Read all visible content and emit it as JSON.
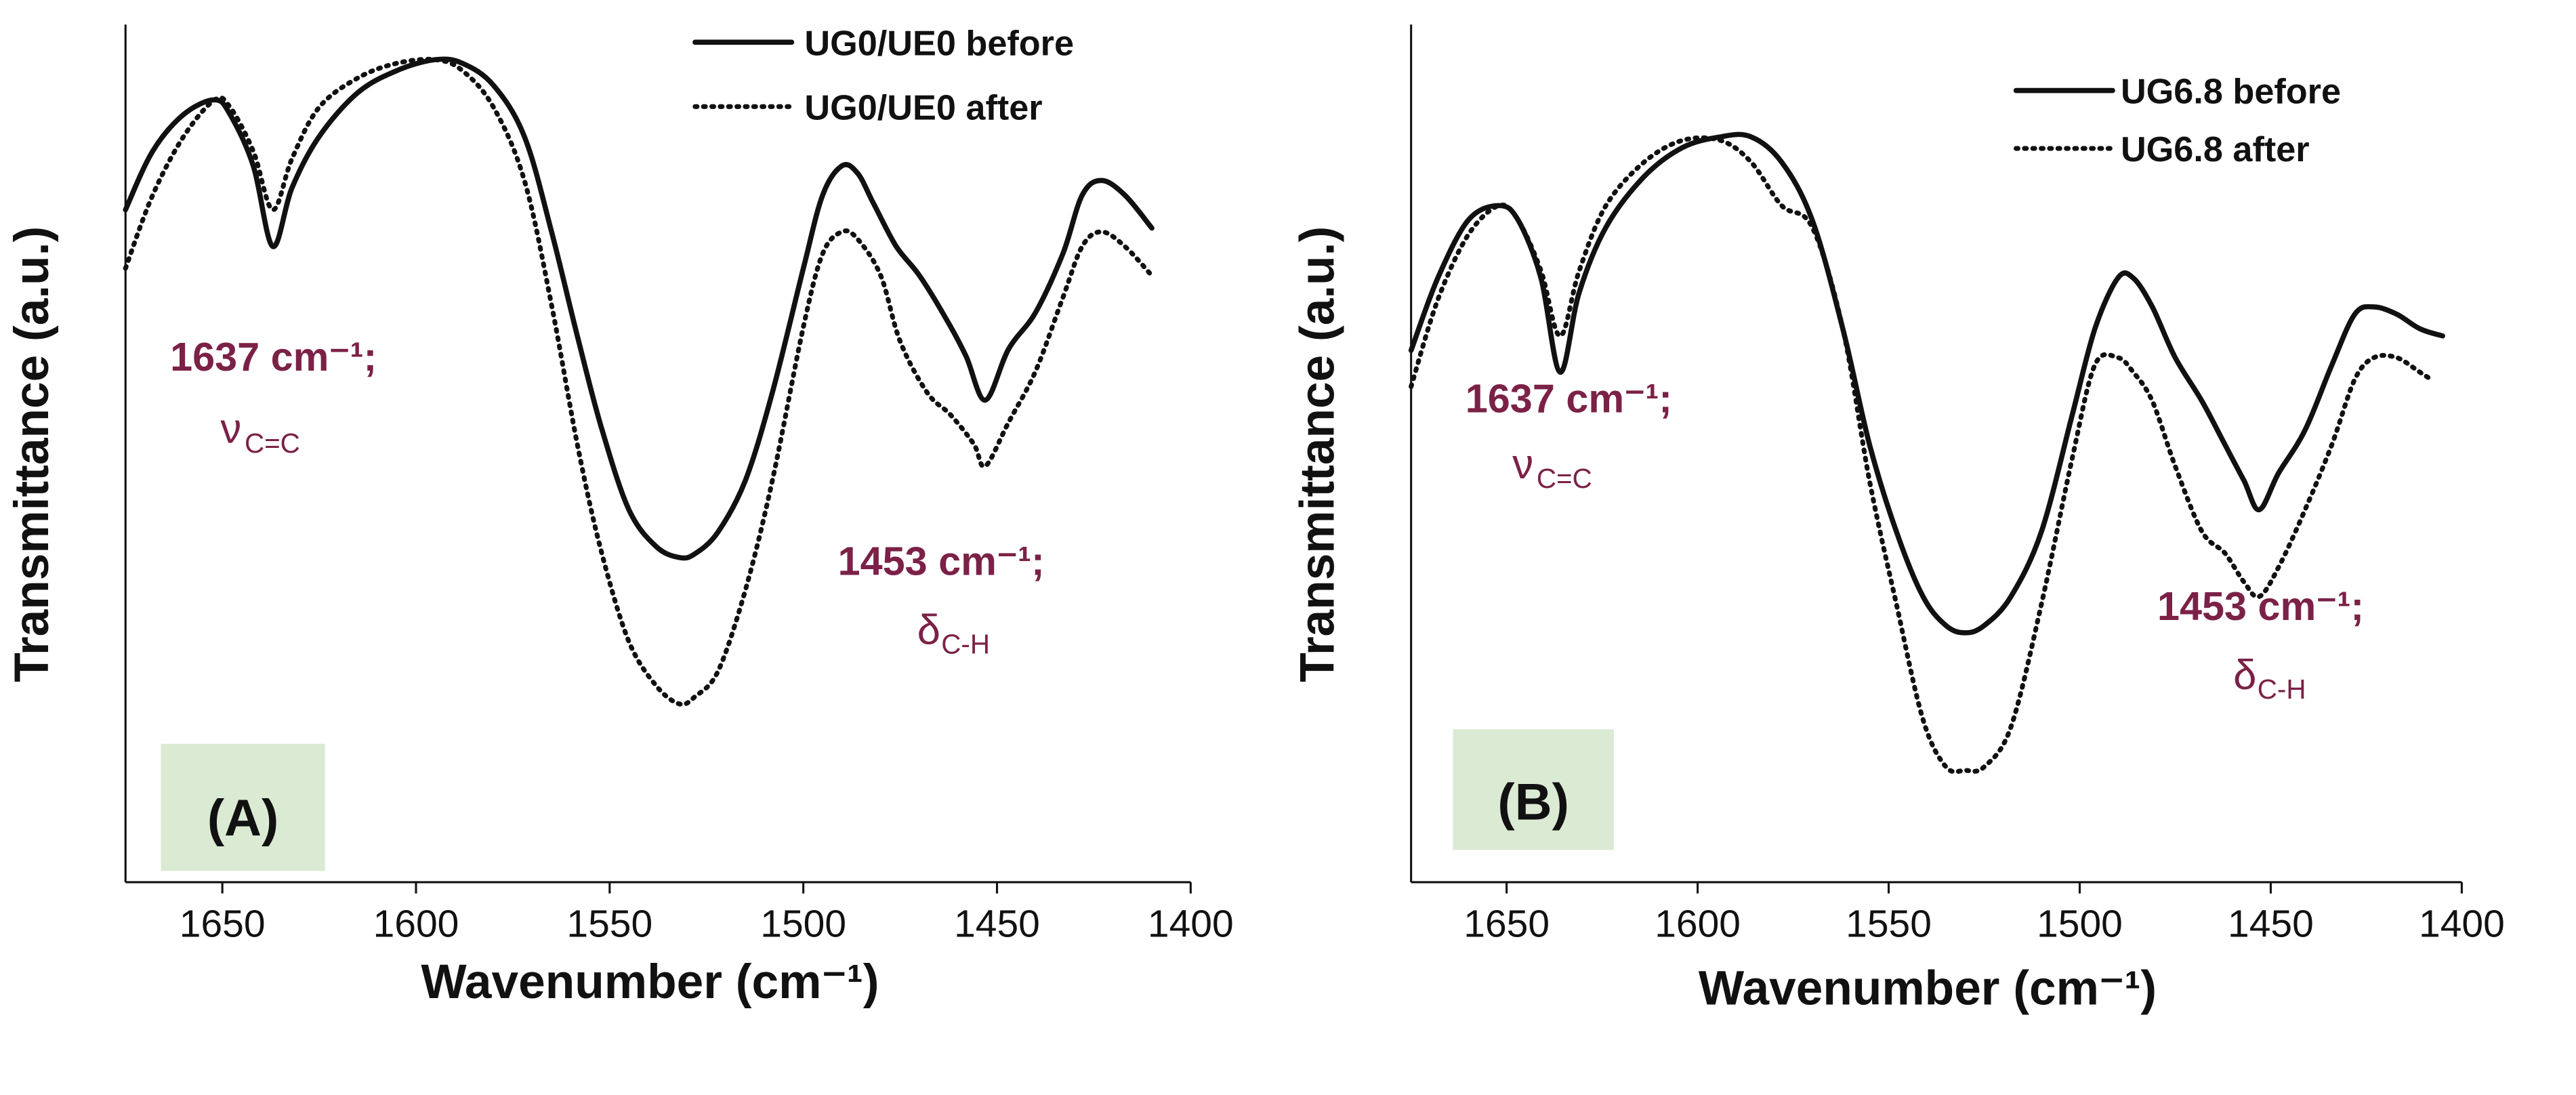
{
  "colors": {
    "line": "#111111",
    "annotation": "#7b2147",
    "tag_background": "#dbead3"
  },
  "chart_data": [
    {
      "type": "line",
      "panel_tag": "(A)",
      "xlabel": "Wavenumber (cm⁻¹)",
      "ylabel": "Transmittance (a.u.)",
      "xlim": [
        1675,
        1400
      ],
      "ylim": [
        0,
        1
      ],
      "y_ticks_shown": false,
      "x_ticks": [
        1650,
        1600,
        1550,
        1500,
        1450,
        1400
      ],
      "x_tick_labels": [
        "1650",
        "1600",
        "1550",
        "1500",
        "1450",
        "1400"
      ],
      "series": [
        {
          "name": "UG0/UE0 before",
          "style": "solid",
          "x": [
            1675,
            1668,
            1660,
            1652,
            1648,
            1642,
            1637,
            1632,
            1625,
            1615,
            1605,
            1595,
            1588,
            1580,
            1572,
            1565,
            1558,
            1552,
            1545,
            1538,
            1532,
            1528,
            1522,
            1515,
            1508,
            1500,
            1495,
            1490,
            1486,
            1482,
            1476,
            1470,
            1463,
            1458,
            1453,
            1447,
            1440,
            1433,
            1428,
            1423,
            1417,
            1410
          ],
          "y": [
            0.78,
            0.86,
            0.91,
            0.93,
            0.91,
            0.84,
            0.73,
            0.81,
            0.88,
            0.94,
            0.97,
            0.985,
            0.98,
            0.95,
            0.88,
            0.75,
            0.6,
            0.48,
            0.37,
            0.32,
            0.305,
            0.31,
            0.34,
            0.41,
            0.53,
            0.7,
            0.8,
            0.84,
            0.83,
            0.79,
            0.73,
            0.69,
            0.63,
            0.58,
            0.52,
            0.59,
            0.64,
            0.72,
            0.8,
            0.82,
            0.8,
            0.755
          ]
        },
        {
          "name": "UG0/UE0 after",
          "style": "dotted",
          "x": [
            1675,
            1668,
            1660,
            1652,
            1648,
            1642,
            1637,
            1632,
            1625,
            1615,
            1605,
            1595,
            1588,
            1580,
            1572,
            1565,
            1558,
            1552,
            1545,
            1538,
            1532,
            1528,
            1522,
            1515,
            1508,
            1500,
            1495,
            1490,
            1486,
            1480,
            1475,
            1468,
            1462,
            1456,
            1453,
            1447,
            1440,
            1433,
            1428,
            1423,
            1417,
            1410
          ],
          "y": [
            0.7,
            0.8,
            0.88,
            0.93,
            0.92,
            0.86,
            0.78,
            0.85,
            0.92,
            0.96,
            0.98,
            0.985,
            0.97,
            0.92,
            0.82,
            0.65,
            0.45,
            0.31,
            0.19,
            0.13,
            0.105,
            0.115,
            0.15,
            0.26,
            0.41,
            0.62,
            0.72,
            0.75,
            0.74,
            0.69,
            0.6,
            0.53,
            0.5,
            0.46,
            0.43,
            0.49,
            0.56,
            0.66,
            0.73,
            0.75,
            0.73,
            0.69
          ]
        }
      ],
      "legend": {
        "position": "top-right",
        "entries": [
          "UG0/UE0 before",
          "UG0/UE0 after"
        ]
      },
      "annotations": [
        {
          "text": "1637 cm⁻¹;",
          "subtext_symbol": "ν",
          "subtext_subscript": "C=C"
        },
        {
          "text": "1453 cm⁻¹;",
          "subtext_symbol": "δ",
          "subtext_subscript": "C-H"
        }
      ]
    },
    {
      "type": "line",
      "panel_tag": "(B)",
      "xlabel": "Wavenumber (cm⁻¹)",
      "ylabel": "Transmittance (a.u.)",
      "xlim": [
        1675,
        1400
      ],
      "ylim": [
        0,
        1
      ],
      "y_ticks_shown": false,
      "x_ticks": [
        1650,
        1600,
        1550,
        1500,
        1450,
        1400
      ],
      "x_tick_labels": [
        "1650",
        "1600",
        "1550",
        "1500",
        "1450",
        "1400"
      ],
      "series": [
        {
          "name": "UG6.8 before",
          "style": "solid",
          "x": [
            1675,
            1668,
            1660,
            1652,
            1647,
            1641,
            1636,
            1631,
            1624,
            1614,
            1604,
            1594,
            1586,
            1578,
            1570,
            1562,
            1555,
            1548,
            1541,
            1535,
            1530,
            1525,
            1518,
            1510,
            1502,
            1496,
            1490,
            1486,
            1481,
            1475,
            1468,
            1462,
            1457,
            1453,
            1448,
            1441,
            1434,
            1428,
            1423,
            1417,
            1411,
            1405
          ],
          "y": [
            0.65,
            0.75,
            0.83,
            0.85,
            0.83,
            0.75,
            0.62,
            0.73,
            0.82,
            0.89,
            0.93,
            0.945,
            0.945,
            0.91,
            0.83,
            0.68,
            0.52,
            0.4,
            0.31,
            0.27,
            0.26,
            0.27,
            0.31,
            0.4,
            0.56,
            0.68,
            0.75,
            0.75,
            0.71,
            0.64,
            0.58,
            0.52,
            0.47,
            0.43,
            0.48,
            0.54,
            0.63,
            0.7,
            0.71,
            0.7,
            0.68,
            0.67
          ]
        },
        {
          "name": "UG6.8 after",
          "style": "dotted",
          "x": [
            1675,
            1668,
            1660,
            1652,
            1647,
            1641,
            1636,
            1631,
            1624,
            1614,
            1604,
            1594,
            1586,
            1578,
            1570,
            1562,
            1555,
            1548,
            1541,
            1535,
            1530,
            1525,
            1518,
            1510,
            1502,
            1496,
            1490,
            1486,
            1481,
            1475,
            1468,
            1462,
            1457,
            1453,
            1448,
            1441,
            1434,
            1428,
            1423,
            1417,
            1411,
            1408
          ],
          "y": [
            0.6,
            0.72,
            0.81,
            0.85,
            0.83,
            0.76,
            0.67,
            0.76,
            0.85,
            0.91,
            0.94,
            0.94,
            0.91,
            0.85,
            0.82,
            0.68,
            0.47,
            0.3,
            0.14,
            0.075,
            0.07,
            0.075,
            0.13,
            0.3,
            0.5,
            0.63,
            0.64,
            0.62,
            0.58,
            0.49,
            0.4,
            0.37,
            0.33,
            0.31,
            0.35,
            0.43,
            0.52,
            0.61,
            0.64,
            0.64,
            0.62,
            0.61
          ]
        }
      ],
      "legend": {
        "position": "top-right",
        "entries": [
          "UG6.8 before",
          "UG6.8 after"
        ]
      },
      "annotations": [
        {
          "text": "1637 cm⁻¹;",
          "subtext_symbol": "ν",
          "subtext_subscript": "C=C"
        },
        {
          "text": "1453 cm⁻¹;",
          "subtext_symbol": "δ",
          "subtext_subscript": "C-H"
        }
      ]
    }
  ]
}
